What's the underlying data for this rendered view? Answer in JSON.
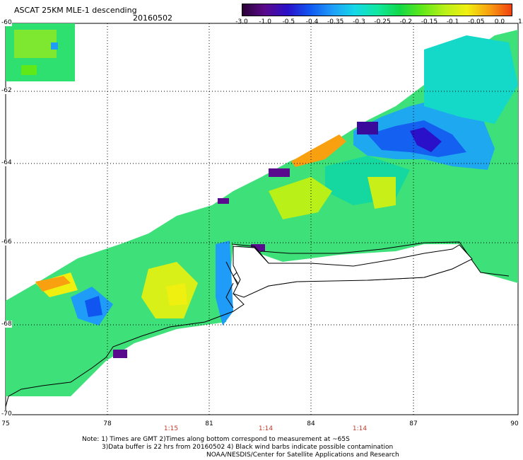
{
  "title": "ASCAT 25KM MLE-1 descending",
  "date": "20160502",
  "colorbar": {
    "labels": [
      "-3.0",
      "-1.0",
      "-0.5",
      "-0.4",
      "-0.35",
      "-0.3",
      "-0.25",
      "-0.2",
      "-0.15",
      "-0.1",
      "-0.05",
      "0.0",
      "1.0"
    ],
    "colors": [
      "#2a0035",
      "#5a0a8c",
      "#2a10c8",
      "#1055f0",
      "#1e9cf8",
      "#14d8e8",
      "#10e8a0",
      "#10d848",
      "#60e818",
      "#b8f018",
      "#f0f010",
      "#f8a010",
      "#f04010"
    ]
  },
  "lat_labels": [
    "-60",
    "-62",
    "-64",
    "-66",
    "-68",
    "-70"
  ],
  "lon_labels": [
    "75",
    "78",
    "81",
    "84",
    "87",
    "90"
  ],
  "time_labels": [
    "1:15",
    "1:14",
    "1:14"
  ],
  "notes": [
    "Note: 1) Times are GMT 2)Times along bottom correspond to measurement at ~65S",
    "3)Data buffer is 22 hrs from 20160502 4) Black wind barbs indicate possible contamination",
    "NOAA/NESDIS/Center for Satellite Applications and Research"
  ]
}
